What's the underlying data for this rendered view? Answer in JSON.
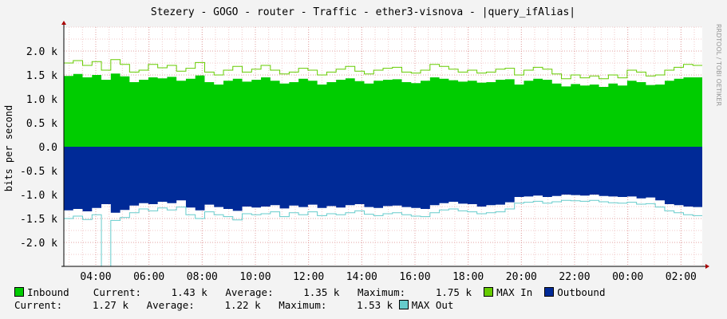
{
  "chart_data": {
    "type": "area",
    "title": "Stezery - GOGO - router - Traffic - ether3-visnova - |query_ifAlias|",
    "ylabel": "bits per second",
    "watermark": "RRDTOOL / TOBI OETIKER",
    "ylim": [
      -2500,
      2500
    ],
    "y_ticks": [
      "2.0 k",
      "1.5 k",
      "1.0 k",
      "0.5 k",
      "0.0",
      "-0.5 k",
      "-1.0 k",
      "-1.5 k",
      "-2.0 k"
    ],
    "y_tick_values": [
      2000,
      1500,
      1000,
      500,
      0,
      -500,
      -1000,
      -1500,
      -2000
    ],
    "x_ticks": [
      "04:00",
      "06:00",
      "08:00",
      "10:00",
      "12:00",
      "14:00",
      "16:00",
      "18:00",
      "20:00",
      "22:00",
      "00:00",
      "02:00"
    ],
    "x_range_hours": [
      2.8,
      26.8
    ],
    "x_tick_hours": [
      4,
      6,
      8,
      10,
      12,
      14,
      16,
      18,
      20,
      22,
      24,
      26
    ],
    "grid": true,
    "series": [
      {
        "name": "Inbound",
        "color": "#00CC00",
        "kind": "area",
        "values": [
          1480,
          1520,
          1450,
          1500,
          1400,
          1530,
          1470,
          1350,
          1400,
          1450,
          1430,
          1460,
          1380,
          1420,
          1490,
          1350,
          1300,
          1380,
          1420,
          1360,
          1400,
          1450,
          1380,
          1320,
          1350,
          1420,
          1380,
          1300,
          1350,
          1400,
          1430,
          1370,
          1320,
          1380,
          1400,
          1410,
          1350,
          1330,
          1380,
          1450,
          1420,
          1390,
          1360,
          1380,
          1340,
          1350,
          1400,
          1410,
          1300,
          1380,
          1420,
          1400,
          1320,
          1260,
          1310,
          1280,
          1300,
          1250,
          1320,
          1280,
          1380,
          1350,
          1290,
          1300,
          1380,
          1420,
          1450,
          1450
        ]
      },
      {
        "name": "MAX In",
        "color": "#66CC00",
        "kind": "line",
        "values": [
          1750,
          1800,
          1700,
          1780,
          1600,
          1820,
          1720,
          1560,
          1600,
          1720,
          1650,
          1700,
          1580,
          1640,
          1760,
          1560,
          1500,
          1600,
          1680,
          1560,
          1620,
          1700,
          1600,
          1520,
          1560,
          1640,
          1600,
          1500,
          1560,
          1620,
          1680,
          1580,
          1520,
          1600,
          1640,
          1660,
          1560,
          1540,
          1600,
          1720,
          1680,
          1620,
          1560,
          1600,
          1540,
          1560,
          1620,
          1640,
          1500,
          1600,
          1660,
          1620,
          1520,
          1420,
          1500,
          1440,
          1480,
          1420,
          1500,
          1440,
          1600,
          1560,
          1480,
          1500,
          1600,
          1660,
          1720,
          1700
        ]
      },
      {
        "name": "Outbound",
        "color": "#002A97",
        "kind": "area",
        "values": [
          -1330,
          -1300,
          -1350,
          -1280,
          -1200,
          -1380,
          -1320,
          -1230,
          -1180,
          -1200,
          -1150,
          -1180,
          -1120,
          -1270,
          -1330,
          -1210,
          -1260,
          -1300,
          -1340,
          -1250,
          -1270,
          -1250,
          -1220,
          -1290,
          -1230,
          -1260,
          -1210,
          -1280,
          -1240,
          -1270,
          -1220,
          -1200,
          -1260,
          -1280,
          -1240,
          -1230,
          -1260,
          -1280,
          -1300,
          -1220,
          -1180,
          -1150,
          -1190,
          -1200,
          -1250,
          -1220,
          -1210,
          -1160,
          -1050,
          -1040,
          -1020,
          -1050,
          -1030,
          -1000,
          -1010,
          -1020,
          -1000,
          -1030,
          -1040,
          -1050,
          -1040,
          -1080,
          -1060,
          -1120,
          -1200,
          -1220,
          -1250,
          -1260
        ]
      },
      {
        "name": "MAX Out",
        "color": "#66CCCC",
        "kind": "line",
        "values": [
          -1500,
          -1450,
          -1520,
          -1420,
          -2500,
          -1540,
          -1480,
          -1380,
          -1300,
          -1340,
          -1280,
          -1320,
          -1260,
          -1420,
          -1500,
          -1360,
          -1420,
          -1460,
          -1530,
          -1400,
          -1420,
          -1400,
          -1360,
          -1460,
          -1380,
          -1420,
          -1360,
          -1440,
          -1400,
          -1420,
          -1380,
          -1340,
          -1410,
          -1440,
          -1400,
          -1380,
          -1420,
          -1450,
          -1460,
          -1380,
          -1320,
          -1300,
          -1340,
          -1360,
          -1400,
          -1380,
          -1360,
          -1300,
          -1180,
          -1160,
          -1140,
          -1180,
          -1150,
          -1120,
          -1130,
          -1140,
          -1120,
          -1150,
          -1170,
          -1180,
          -1160,
          -1200,
          -1190,
          -1260,
          -1340,
          -1380,
          -1420,
          -1440
        ]
      }
    ]
  },
  "legend": {
    "inbound": {
      "name": "Inbound",
      "current_label": "Current:",
      "current": "1.43 k",
      "average_label": "Average:",
      "average": "1.35 k",
      "maximum_label": "Maximum:",
      "maximum": "1.75 k",
      "color": "#00CC00"
    },
    "max_in": {
      "name": "MAX In",
      "color": "#66CC00"
    },
    "outbound": {
      "name": "Outbound",
      "current_label": "Current:",
      "current": "1.27 k",
      "average_label": "Average:",
      "average": "1.22 k",
      "maximum_label": "Maximum:",
      "maximum": "1.53 k",
      "color": "#002A97"
    },
    "max_out": {
      "name": "MAX Out",
      "color": "#66CCCC"
    }
  }
}
